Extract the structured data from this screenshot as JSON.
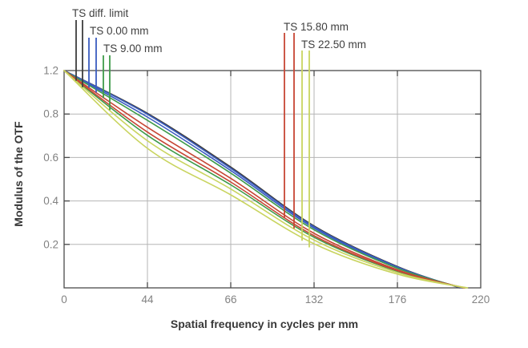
{
  "chart_data": {
    "type": "line",
    "title": "",
    "xlabel": "Spatial frequency in cycles per mm",
    "ylabel": "Modulus of the OTF",
    "x_tick_labels": [
      "0",
      "44",
      "66",
      "132",
      "176",
      "220"
    ],
    "y_tick_labels": [
      "1.2",
      "0.8",
      "0.6",
      "0.4",
      "0.2"
    ],
    "x_range": [
      0,
      220
    ],
    "y_range": [
      0,
      1.2
    ],
    "grid": true,
    "legend_position": "top",
    "legend": [
      {
        "label": "TS diff. limit",
        "color": "#3c3c3c"
      },
      {
        "label": "TS 0.00 mm",
        "color": "#3a5cc0"
      },
      {
        "label": "TS 9.00 mm",
        "color": "#3f9b4a"
      },
      {
        "label": "TS 15.80 mm",
        "color": "#c74634"
      },
      {
        "label": "TS 22.50 mm",
        "color": "#c9d45f"
      }
    ],
    "series": [
      {
        "name": "TS diff. limit",
        "color": "#3c3c3c",
        "points": [
          [
            0,
            1.2
          ],
          [
            44,
            0.807
          ],
          [
            66,
            0.556
          ],
          [
            132,
            0.285
          ],
          [
            176,
            0.098
          ],
          [
            209,
            0
          ]
        ]
      },
      {
        "name": "T 0.00 mm",
        "color": "#3a5cc0",
        "points": [
          [
            0,
            1.2
          ],
          [
            44,
            0.799
          ],
          [
            66,
            0.55
          ],
          [
            132,
            0.281
          ],
          [
            176,
            0.096
          ],
          [
            209.5,
            0
          ]
        ]
      },
      {
        "name": "S 0.00 mm",
        "color": "#3a5cc0",
        "points": [
          [
            0,
            1.2
          ],
          [
            44,
            0.786
          ],
          [
            66,
            0.54
          ],
          [
            132,
            0.275
          ],
          [
            176,
            0.093
          ],
          [
            210,
            0
          ]
        ]
      },
      {
        "name": "T 9.00 mm",
        "color": "#3f9b4a",
        "points": [
          [
            0,
            1.2
          ],
          [
            44,
            0.771
          ],
          [
            66,
            0.528
          ],
          [
            132,
            0.267
          ],
          [
            176,
            0.09
          ],
          [
            210.5,
            0
          ]
        ]
      },
      {
        "name": "S 9.00 mm",
        "color": "#3f9b4a",
        "points": [
          [
            0,
            1.2
          ],
          [
            44,
            0.702
          ],
          [
            66,
            0.474
          ],
          [
            132,
            0.233
          ],
          [
            176,
            0.076
          ],
          [
            211.5,
            0
          ]
        ]
      },
      {
        "name": "T 15.80 mm",
        "color": "#c74634",
        "points": [
          [
            0,
            1.2
          ],
          [
            44,
            0.739
          ],
          [
            66,
            0.504
          ],
          [
            132,
            0.251
          ],
          [
            176,
            0.083
          ],
          [
            211,
            0
          ]
        ]
      },
      {
        "name": "S 15.80 mm",
        "color": "#c74634",
        "points": [
          [
            0,
            1.2
          ],
          [
            44,
            0.717
          ],
          [
            66,
            0.487
          ],
          [
            132,
            0.24
          ],
          [
            176,
            0.079
          ],
          [
            211.5,
            0
          ]
        ]
      },
      {
        "name": "T 22.50 mm",
        "color": "#c9d45f",
        "points": [
          [
            0,
            1.2
          ],
          [
            44,
            0.677
          ],
          [
            66,
            0.455
          ],
          [
            132,
            0.22
          ],
          [
            176,
            0.07
          ],
          [
            212,
            0
          ]
        ]
      },
      {
        "name": "S 22.50 mm",
        "color": "#c9d45f",
        "points": [
          [
            0,
            1.2
          ],
          [
            44,
            0.642
          ],
          [
            66,
            0.428
          ],
          [
            132,
            0.203
          ],
          [
            176,
            0.063
          ],
          [
            213,
            0
          ]
        ]
      }
    ]
  }
}
